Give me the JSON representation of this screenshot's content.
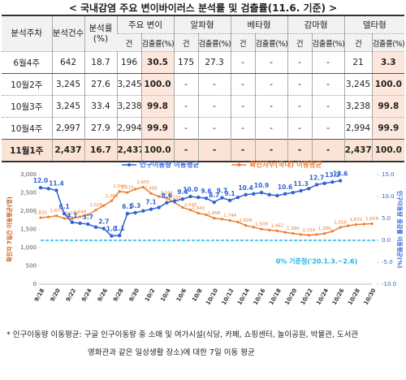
{
  "title": "< 국내감염 주요 변이바이러스 분석률 및 검출률(11.6. 기준) >",
  "table": {
    "header": [
      "분석주차",
      "분석건수",
      "분석률(%)",
      "주요 변이",
      "알파형",
      "베타형",
      "감마형",
      "델타형"
    ],
    "subheader": [
      "건",
      "검출률(%)",
      "건",
      "검출률(%)",
      "건",
      "검출률(%)",
      "건",
      "검출률(%)",
      "건",
      "검출률(%)"
    ],
    "rows": [
      [
        "6월4주",
        "642",
        "18.7",
        "196",
        "30.5",
        "175",
        "27.3",
        "-",
        "-",
        "-",
        "-",
        "21",
        "3.3"
      ],
      [
        "10월2주",
        "3,245",
        "27.6",
        "3,245",
        "100.0",
        "-",
        "-",
        "-",
        "-",
        "-",
        "-",
        "3,245",
        "100.0"
      ],
      [
        "10월3주",
        "3,245",
        "33.4",
        "3,238",
        "99.8",
        "-",
        "-",
        "-",
        "-",
        "-",
        "-",
        "3,238",
        "99.8"
      ],
      [
        "10월4주",
        "2,997",
        "27.9",
        "2,994",
        "99.9",
        "-",
        "-",
        "-",
        "-",
        "-",
        "-",
        "2,994",
        "99.9"
      ],
      [
        "11월1주",
        "2,437",
        "16.7",
        "2,437",
        "100.0",
        "-",
        "-",
        "-",
        "-",
        "-",
        "-",
        "2,437",
        "100.0"
      ]
    ]
  },
  "chart_data": {
    "type": "line",
    "categories": [
      "9/18",
      null,
      "9/20",
      null,
      "9/22",
      null,
      "9/24",
      null,
      "9/26",
      null,
      "9/28",
      null,
      "9/30",
      null,
      "10/2",
      null,
      "10/4",
      null,
      "10/6",
      null,
      "10/8",
      null,
      "10/10",
      null,
      "10/12",
      null,
      "10/14",
      null,
      "10/16",
      null,
      "10/18",
      null,
      "10/20",
      null,
      "10/22",
      null,
      "10/24",
      null,
      "10/26",
      null,
      "10/28",
      null,
      "10/30"
    ],
    "series": [
      {
        "name": "인구이동량 이동평균",
        "color": "#2f63d6",
        "axis": "y2",
        "values": [
          12.0,
          11.8,
          11.4,
          6.1,
          4.1,
          3.9,
          3.7,
          3.0,
          2.7,
          1.0,
          1.1,
          6.1,
          6.3,
          6.7,
          7.1,
          7.5,
          8.6,
          9.0,
          9.4,
          10.0,
          9.8,
          9.6,
          8.7,
          9.7,
          9.1,
          9.8,
          10.4,
          10.6,
          10.9,
          10.4,
          10.2,
          10.6,
          10.9,
          11.3,
          11.8,
          12.7,
          13.0,
          13.3,
          13.6,
          null,
          null,
          null,
          null
        ],
        "value_labels": [
          "12.0",
          null,
          "11.4",
          "6.1",
          "4.1",
          null,
          "3.7",
          null,
          "2.7",
          "1.0",
          "1.1",
          "6.1",
          "6.3",
          null,
          "7.1",
          null,
          "8.6",
          null,
          "9.4",
          "10.0",
          null,
          "9.6",
          "8.7",
          "9.7",
          "9.1",
          null,
          "10.4",
          null,
          "10.9",
          null,
          null,
          "10.6",
          null,
          "11.3",
          null,
          "12.7",
          null,
          "13.3",
          "13.6",
          null,
          null,
          null,
          null
        ]
      },
      {
        "name": "확진자수(국내) 이동평균",
        "color": "#ed7d31",
        "values": [
          1820,
          1840,
          1873,
          1800,
          1795,
          1848,
          1900,
          2028,
          2150,
          2283,
          2540,
          2510,
          2600,
          2655,
          2485,
          2400,
          2352,
          2233,
          2100,
          2030,
          1943,
          1900,
          1806,
          1780,
          1744,
          1700,
          1609,
          1560,
          1509,
          1480,
          1462,
          1420,
          1390,
          1360,
          1339,
          1360,
          1386,
          1450,
          1556,
          1600,
          1631,
          1645,
          1655
        ],
        "value_labels": [
          "1,820",
          null,
          "1,873",
          null,
          "1,795",
          "1,848",
          null,
          "2,028",
          null,
          "2,283",
          "2,540",
          "2,510",
          null,
          "2,655",
          "2,485",
          null,
          "2,352",
          "2,233",
          null,
          "2,030",
          "1,943",
          null,
          "1,806",
          null,
          "1,744",
          null,
          "1,609",
          null,
          "1,509",
          null,
          "1,462",
          null,
          "1,390",
          null,
          "1,339",
          null,
          "1,386",
          null,
          "1,556",
          null,
          "1,631",
          null,
          "1,655"
        ]
      }
    ],
    "ylim": [
      0,
      3000
    ],
    "yticks": [
      0,
      500,
      {
        "value": 1000,
        "label": "1,000"
      },
      {
        "value": 1500,
        "label": "1,500"
      },
      {
        "value": 2000,
        "label": "2,000"
      },
      {
        "value": 2500,
        "label": "2,500"
      },
      {
        "value": 3000,
        "label": "3,000"
      }
    ],
    "y2lim": [
      -10,
      15
    ],
    "y2ticks": [
      {
        "value": -10,
        "label": "-10.0"
      },
      {
        "value": -5,
        "label": "-5.0"
      },
      {
        "value": 0,
        "label": "0.0"
      },
      {
        "value": 5,
        "label": "5.0"
      },
      {
        "value": 10,
        "label": "10.0"
      },
      {
        "value": 15,
        "label": "15.0"
      }
    ],
    "ylabel": "확진자 7일간 이동평균(명)",
    "y2label": "인구이동량 증감률 이동평균(%)",
    "ref_line": {
      "value": 0,
      "color": "#19b5e6",
      "label": "0% 기준점('20.1.3.~2.6)"
    },
    "grid": false
  },
  "footnote": [
    "* 인구이동량 이동평균: 구글 인구이동량 중 소매 및 여가시설(식당, 카페, 쇼핑센터, 놀이공원, 박물관, 도서관",
    "영화관과 같은 일상생활 장소)에 대한 7일 이동 평균"
  ]
}
